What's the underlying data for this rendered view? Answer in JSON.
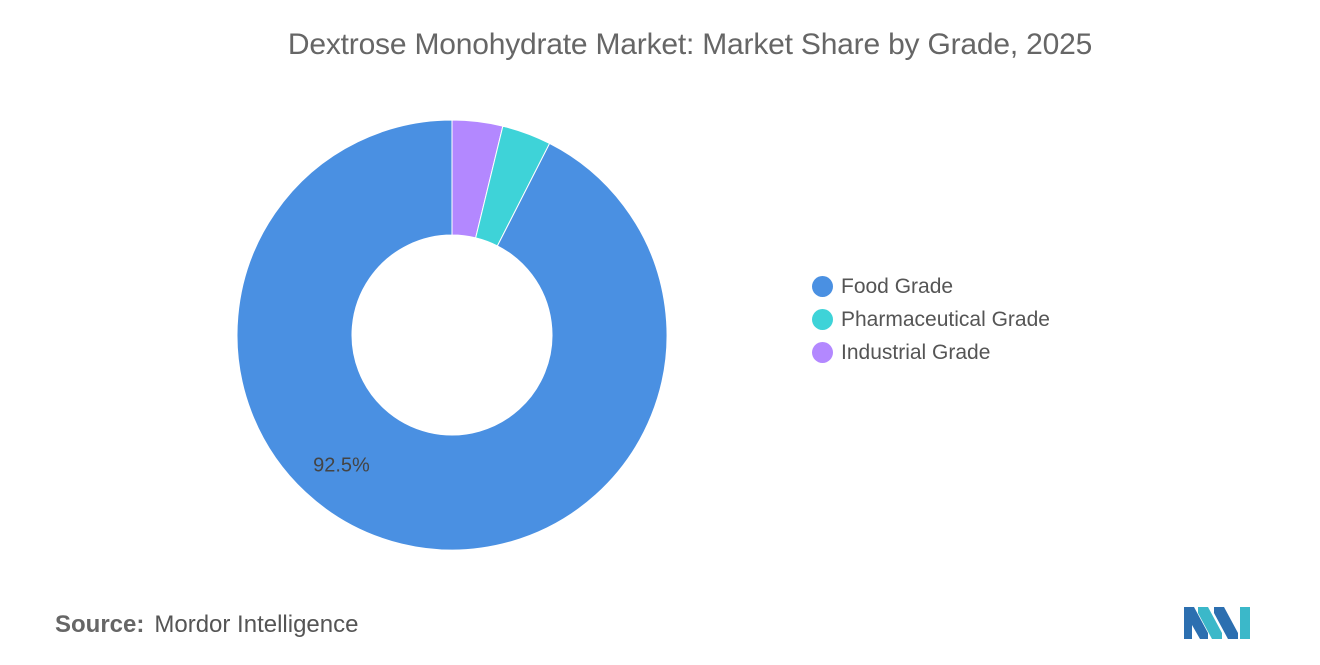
{
  "chart_data": {
    "type": "pie",
    "title": "Dextrose Monohydrate Market: Market Share by Grade, 2025",
    "series": [
      {
        "name": "Food Grade",
        "value": 92.5,
        "color": "#4a90e2",
        "label": "92.5%"
      },
      {
        "name": "Pharmaceutical Grade",
        "value": 3.7,
        "color": "#3ed3d8",
        "label": ""
      },
      {
        "name": "Industrial Grade",
        "value": 3.8,
        "color": "#b388ff",
        "label": ""
      }
    ],
    "legend_position": "right",
    "donut": true
  },
  "legend": {
    "items": [
      {
        "label": "Food Grade",
        "color": "#4a90e2"
      },
      {
        "label": "Pharmaceutical Grade",
        "color": "#3ed3d8"
      },
      {
        "label": "Industrial Grade",
        "color": "#b388ff"
      }
    ]
  },
  "footer": {
    "source_label": "Source:",
    "source_value": "Mordor Intelligence",
    "logo_icon": "mordor-intelligence-logo-icon"
  }
}
